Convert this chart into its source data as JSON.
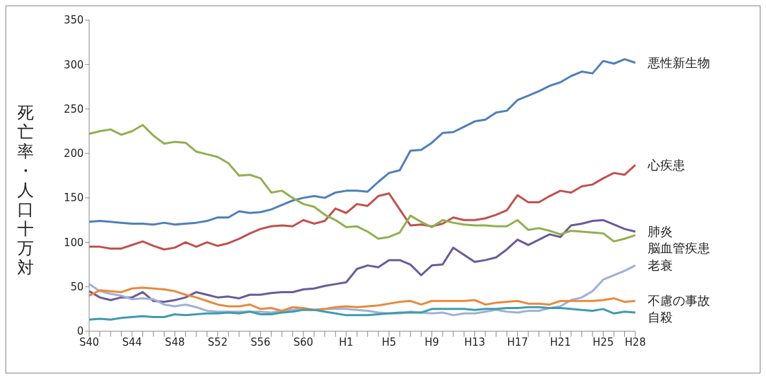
{
  "chart_data": {
    "type": "line",
    "ylabel": "死亡率・人口十万対",
    "categories": [
      "S40",
      null,
      null,
      null,
      "S44",
      null,
      null,
      null,
      "S48",
      null,
      null,
      null,
      "S52",
      null,
      null,
      null,
      "S56",
      null,
      null,
      null,
      "S60",
      null,
      null,
      null,
      "H1",
      null,
      null,
      null,
      "H5",
      null,
      null,
      null,
      "H9",
      null,
      null,
      null,
      "H13",
      null,
      null,
      null,
      "H17",
      null,
      null,
      null,
      "H21",
      null,
      null,
      null,
      "H25",
      null,
      null,
      "H28"
    ],
    "series": [
      {
        "name": "悪性新生物",
        "color": "#4f7fba",
        "values": [
          123,
          124,
          123,
          122,
          121,
          121,
          120,
          122,
          120,
          121,
          122,
          124,
          128,
          128,
          135,
          133,
          134,
          137,
          142,
          147,
          150,
          152,
          150,
          156,
          158,
          158,
          157,
          168,
          178,
          181,
          203,
          204,
          212,
          223,
          224,
          230,
          236,
          238,
          246,
          248,
          260,
          265,
          270,
          276,
          280,
          287,
          292,
          290,
          304,
          301,
          306,
          302
        ]
      },
      {
        "name": "心疾患",
        "color": "#c0504d",
        "values": [
          95,
          95,
          93,
          93,
          97,
          101,
          96,
          92,
          94,
          100,
          95,
          100,
          96,
          99,
          104,
          110,
          115,
          118,
          119,
          118,
          125,
          121,
          124,
          138,
          133,
          143,
          141,
          152,
          155,
          137,
          119,
          120,
          118,
          121,
          128,
          125,
          125,
          127,
          131,
          136,
          153,
          145,
          145,
          152,
          158,
          156,
          163,
          165,
          172,
          178,
          176,
          187
        ]
      },
      {
        "name": "肺炎",
        "color": "#6a5a9a",
        "values": [
          45,
          38,
          35,
          38,
          38,
          44,
          34,
          33,
          35,
          38,
          44,
          41,
          38,
          39,
          37,
          41,
          41,
          43,
          44,
          44,
          47,
          48,
          51,
          53,
          55,
          70,
          74,
          72,
          80,
          80,
          75,
          63,
          74,
          75,
          94,
          86,
          78,
          80,
          83,
          92,
          103,
          97,
          103,
          109,
          106,
          119,
          121,
          124,
          125,
          120,
          115,
          112
        ]
      },
      {
        "name": "脳血管疾患",
        "color": "#8fb050",
        "values": [
          222,
          225,
          227,
          221,
          225,
          232,
          220,
          211,
          213,
          212,
          202,
          199,
          196,
          189,
          175,
          176,
          172,
          156,
          158,
          150,
          143,
          140,
          131,
          125,
          117,
          118,
          112,
          104,
          106,
          111,
          130,
          123,
          117,
          125,
          122,
          120,
          119,
          119,
          118,
          118,
          125,
          114,
          116,
          113,
          109,
          113,
          112,
          111,
          110,
          101,
          104,
          108
        ]
      },
      {
        "name": "老衰",
        "color": "#9fb0d8",
        "values": [
          53,
          45,
          42,
          40,
          36,
          37,
          36,
          30,
          28,
          30,
          27,
          23,
          22,
          22,
          22,
          22,
          22,
          21,
          23,
          24,
          25,
          24,
          25,
          25,
          25,
          24,
          23,
          21,
          20,
          20,
          22,
          21,
          20,
          21,
          18,
          20,
          20,
          22,
          24,
          22,
          21,
          23,
          23,
          26,
          28,
          35,
          38,
          45,
          58,
          63,
          68,
          74
        ]
      },
      {
        "name": "不慮の事故",
        "color": "#e8893e",
        "values": [
          40,
          46,
          45,
          44,
          48,
          49,
          48,
          47,
          45,
          41,
          38,
          34,
          30,
          28,
          28,
          30,
          25,
          26,
          23,
          27,
          26,
          24,
          25,
          27,
          28,
          27,
          28,
          29,
          31,
          33,
          34,
          30,
          34,
          34,
          34,
          34,
          35,
          30,
          32,
          33,
          34,
          31,
          31,
          30,
          34,
          34,
          34,
          34,
          35,
          37,
          33,
          34
        ]
      },
      {
        "name": "自殺",
        "color": "#3f9bb0",
        "values": [
          13,
          14,
          13,
          15,
          16,
          17,
          16,
          16,
          19,
          18,
          19,
          20,
          20,
          21,
          20,
          22,
          19,
          19,
          21,
          22,
          24,
          24,
          22,
          20,
          18,
          18,
          18,
          19,
          20,
          21,
          21,
          21,
          25,
          25,
          25,
          25,
          24,
          25,
          25,
          26,
          26,
          27,
          27,
          26,
          26,
          25,
          24,
          23,
          25,
          20,
          22,
          21
        ]
      }
    ],
    "ylim": [
      0,
      350
    ],
    "yticks": [
      0,
      50,
      100,
      150,
      200,
      250,
      300,
      350
    ],
    "grid": false,
    "legend": false
  }
}
